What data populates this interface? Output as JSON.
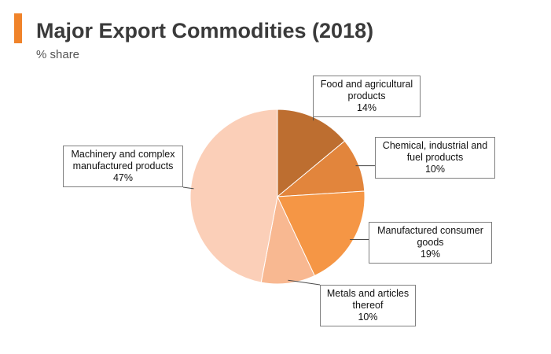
{
  "header": {
    "title": "Major Export Commodities (2018)",
    "subtitle": "% share"
  },
  "colors": {
    "accent": "#f0832a"
  },
  "chart_data": {
    "type": "pie",
    "title": "Major Export Commodities (2018)",
    "subtitle": "% share",
    "start_angle_deg": 0,
    "direction": "clockwise",
    "slices": [
      {
        "label": "Food and agricultural products",
        "label_lines": [
          "Food and agricultural",
          "products"
        ],
        "value": 14,
        "value_label": "14%",
        "color": "#bd6e30"
      },
      {
        "label": "Chemical, industrial and fuel products",
        "label_lines": [
          "Chemical, industrial and",
          "fuel products"
        ],
        "value": 10,
        "value_label": "10%",
        "color": "#e2853c"
      },
      {
        "label": "Manufactured consumer goods",
        "label_lines": [
          "Manufactured consumer",
          "goods"
        ],
        "value": 19,
        "value_label": "19%",
        "color": "#f59645"
      },
      {
        "label": "Metals and articles thereof",
        "label_lines": [
          "Metals and articles",
          "thereof"
        ],
        "value": 10,
        "value_label": "10%",
        "color": "#f8b891"
      },
      {
        "label": "Machinery and complex manufactured products",
        "label_lines": [
          "Machinery and complex",
          "manufactured products"
        ],
        "value": 47,
        "value_label": "47%",
        "color": "#fbcfb8"
      }
    ]
  }
}
